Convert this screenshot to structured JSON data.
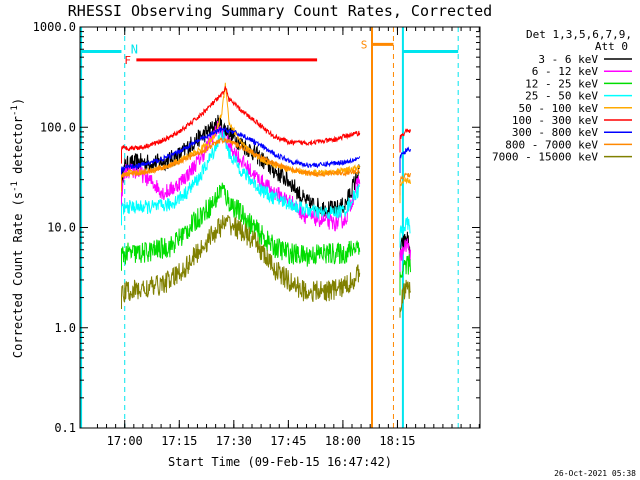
{
  "chart_data": {
    "type": "line",
    "title": "RHESSI Observing Summary Count Rates, Corrected",
    "xlabel": "Start Time (09-Feb-15 16:47:42)",
    "ylabel_main": "Corrected Count Rate (s",
    "ylabel_sup": "-1",
    "ylabel_tail": " detector",
    "ylabel_end": ")",
    "y_scale": "log",
    "ylim": [
      0.1,
      1000.0
    ],
    "xlim_minutes": [
      0,
      110
    ],
    "x_ticks": [
      {
        "label": "17:00",
        "min": 12.3
      },
      {
        "label": "17:15",
        "min": 27.3
      },
      {
        "label": "17:30",
        "min": 42.3
      },
      {
        "label": "17:45",
        "min": 57.3
      },
      {
        "label": "18:00",
        "min": 72.3
      },
      {
        "label": "18:15",
        "min": 87.3
      }
    ],
    "y_ticks": [
      {
        "label": "1000.0",
        "v": 1000
      },
      {
        "label": "100.0",
        "v": 100
      },
      {
        "label": "10.0",
        "v": 10
      },
      {
        "label": "1.0",
        "v": 1
      },
      {
        "label": "0.1",
        "v": 0.1
      }
    ],
    "legend_header": [
      "Det 1,3,5,6,7,9,",
      "Att 0"
    ],
    "legend_position": "outside-right",
    "series": [
      {
        "name": "3 - 6 keV",
        "color": "#000000",
        "segA": [
          [
            11.4,
            30
          ],
          [
            12.5,
            42
          ],
          [
            16,
            45
          ],
          [
            20,
            44
          ],
          [
            24,
            46
          ],
          [
            28,
            55
          ],
          [
            31,
            70
          ],
          [
            36,
            95
          ],
          [
            38,
            110
          ],
          [
            40,
            95
          ],
          [
            44,
            70
          ],
          [
            48,
            55
          ],
          [
            53,
            38
          ],
          [
            58,
            28
          ],
          [
            62,
            18
          ],
          [
            66,
            16
          ],
          [
            70,
            15
          ],
          [
            73,
            17
          ],
          [
            77,
            38
          ]
        ],
        "segB": [
          [
            88,
            6
          ],
          [
            89,
            7
          ],
          [
            90,
            8
          ],
          [
            91,
            5
          ]
        ]
      },
      {
        "name": "6 - 12 keV",
        "color": "#ff00ff",
        "segA": [
          [
            11.4,
            22
          ],
          [
            12.5,
            36
          ],
          [
            16,
            36
          ],
          [
            20,
            28
          ],
          [
            23,
            22
          ],
          [
            26,
            25
          ],
          [
            30,
            35
          ],
          [
            34,
            55
          ],
          [
            38,
            100
          ],
          [
            40,
            75
          ],
          [
            44,
            48
          ],
          [
            48,
            33
          ],
          [
            53,
            23
          ],
          [
            58,
            18
          ],
          [
            62,
            13
          ],
          [
            66,
            12
          ],
          [
            70,
            11
          ],
          [
            73,
            12
          ],
          [
            77,
            32
          ]
        ],
        "segB": [
          [
            88,
            5
          ],
          [
            89,
            6
          ],
          [
            90,
            7
          ],
          [
            91,
            5
          ]
        ]
      },
      {
        "name": "12 - 25 keV",
        "color": "#00dd00",
        "segA": [
          [
            11.4,
            5.3
          ],
          [
            13,
            5.5
          ],
          [
            17,
            5.5
          ],
          [
            21,
            6
          ],
          [
            25,
            6.5
          ],
          [
            29,
            9
          ],
          [
            33,
            13
          ],
          [
            37,
            18
          ],
          [
            39,
            25
          ],
          [
            41,
            18
          ],
          [
            45,
            13
          ],
          [
            49,
            9
          ],
          [
            53,
            6.5
          ],
          [
            58,
            5.5
          ],
          [
            62,
            5.2
          ],
          [
            66,
            5.5
          ],
          [
            70,
            5.5
          ],
          [
            73,
            5.5
          ],
          [
            77,
            7
          ]
        ],
        "segB": [
          [
            88,
            3
          ],
          [
            89,
            4
          ],
          [
            90,
            4.5
          ],
          [
            91,
            4
          ]
        ]
      },
      {
        "name": "25 - 50 keV",
        "color": "#00ffff",
        "segA": [
          [
            11.4,
            15
          ],
          [
            13,
            16
          ],
          [
            17,
            16
          ],
          [
            21,
            16
          ],
          [
            25,
            17
          ],
          [
            29,
            22
          ],
          [
            33,
            32
          ],
          [
            37,
            60
          ],
          [
            39,
            90
          ],
          [
            41,
            55
          ],
          [
            45,
            35
          ],
          [
            49,
            25
          ],
          [
            53,
            20
          ],
          [
            58,
            17
          ],
          [
            62,
            15
          ],
          [
            66,
            14
          ],
          [
            70,
            14
          ],
          [
            73,
            15
          ],
          [
            77,
            25
          ]
        ],
        "segB": [
          [
            88,
            9
          ],
          [
            89,
            10
          ],
          [
            90,
            11
          ],
          [
            91,
            10
          ]
        ]
      },
      {
        "name": "50 - 100 keV",
        "color": "#ffaa00",
        "segA": [
          [
            11.4,
            32
          ],
          [
            13,
            35
          ],
          [
            17,
            36
          ],
          [
            21,
            38
          ],
          [
            25,
            42
          ],
          [
            29,
            50
          ],
          [
            33,
            60
          ],
          [
            37,
            80
          ],
          [
            39,
            140
          ],
          [
            40,
            280
          ],
          [
            41,
            110
          ],
          [
            45,
            65
          ],
          [
            49,
            50
          ],
          [
            53,
            42
          ],
          [
            58,
            38
          ],
          [
            62,
            35
          ],
          [
            66,
            35
          ],
          [
            70,
            36
          ],
          [
            73,
            37
          ],
          [
            77,
            40
          ]
        ],
        "segB": [
          [
            88,
            25
          ],
          [
            89,
            28
          ],
          [
            90,
            30
          ],
          [
            91,
            28
          ]
        ]
      },
      {
        "name": "100 - 300 keV",
        "color": "#ff0000",
        "segA": [
          [
            11.4,
            62
          ],
          [
            13,
            62
          ],
          [
            17,
            63
          ],
          [
            21,
            70
          ],
          [
            25,
            80
          ],
          [
            29,
            100
          ],
          [
            33,
            130
          ],
          [
            37,
            180
          ],
          [
            39,
            210
          ],
          [
            40,
            250
          ],
          [
            41,
            190
          ],
          [
            45,
            140
          ],
          [
            49,
            110
          ],
          [
            53,
            82
          ],
          [
            58,
            70
          ],
          [
            62,
            70
          ],
          [
            66,
            72
          ],
          [
            70,
            75
          ],
          [
            73,
            82
          ],
          [
            77,
            88
          ]
        ],
        "segB": [
          [
            88,
            80
          ],
          [
            89,
            85
          ],
          [
            90,
            95
          ],
          [
            91,
            90
          ]
        ]
      },
      {
        "name": "300 - 800 keV",
        "color": "#0000ff",
        "segA": [
          [
            11.4,
            38
          ],
          [
            13,
            40
          ],
          [
            17,
            42
          ],
          [
            21,
            46
          ],
          [
            25,
            52
          ],
          [
            29,
            62
          ],
          [
            33,
            75
          ],
          [
            37,
            88
          ],
          [
            39,
            95
          ],
          [
            41,
            92
          ],
          [
            45,
            82
          ],
          [
            49,
            68
          ],
          [
            53,
            55
          ],
          [
            58,
            46
          ],
          [
            62,
            42
          ],
          [
            66,
            42
          ],
          [
            70,
            44
          ],
          [
            73,
            45
          ],
          [
            77,
            50
          ]
        ],
        "segB": [
          [
            88,
            50
          ],
          [
            89,
            55
          ],
          [
            90,
            60
          ],
          [
            91,
            58
          ]
        ]
      },
      {
        "name": "800 - 7000 keV",
        "color": "#ff8800",
        "segA": [
          [
            11.4,
            33
          ],
          [
            13,
            34
          ],
          [
            17,
            35
          ],
          [
            21,
            38
          ],
          [
            25,
            42
          ],
          [
            29,
            48
          ],
          [
            33,
            56
          ],
          [
            37,
            68
          ],
          [
            39,
            75
          ],
          [
            41,
            72
          ],
          [
            45,
            62
          ],
          [
            49,
            52
          ],
          [
            53,
            44
          ],
          [
            58,
            38
          ],
          [
            62,
            35
          ],
          [
            66,
            34
          ],
          [
            70,
            35
          ],
          [
            73,
            35
          ],
          [
            77,
            36
          ]
        ],
        "segB": [
          [
            88,
            30
          ],
          [
            89,
            32
          ],
          [
            90,
            34
          ],
          [
            91,
            33
          ]
        ]
      },
      {
        "name": "7000 - 15000 keV",
        "color": "#808000",
        "segA": [
          [
            11.4,
            2.2
          ],
          [
            13,
            2.3
          ],
          [
            17,
            2.4
          ],
          [
            21,
            2.6
          ],
          [
            25,
            3.0
          ],
          [
            29,
            4.0
          ],
          [
            33,
            6.0
          ],
          [
            37,
            9.0
          ],
          [
            39,
            10.5
          ],
          [
            41,
            11
          ],
          [
            45,
            9
          ],
          [
            49,
            6.5
          ],
          [
            53,
            4.0
          ],
          [
            58,
            2.8
          ],
          [
            62,
            2.3
          ],
          [
            66,
            2.3
          ],
          [
            70,
            2.4
          ],
          [
            73,
            2.6
          ],
          [
            77,
            3.5
          ]
        ],
        "segB": [
          [
            88,
            1.8
          ],
          [
            89,
            2.2
          ],
          [
            90,
            2.5
          ],
          [
            91,
            2.3
          ]
        ]
      }
    ],
    "annotations": {
      "night_N": {
        "label": "N",
        "bars": [
          [
            0,
            11.4
          ],
          [
            88.8,
            104
          ]
        ],
        "dashed_min": [
          12.3,
          104
        ],
        "y_value": 570
      },
      "flare_F": {
        "label": "F",
        "range": [
          15.5,
          65.2
        ],
        "y_value": 470
      },
      "saa_S": {
        "label": "S",
        "range": [
          80.5,
          86.2
        ],
        "y_value": 670,
        "solid_min": 80.3,
        "dashed_min": 86.2
      }
    },
    "timestamp": "26-Oct-2021 05:38"
  }
}
